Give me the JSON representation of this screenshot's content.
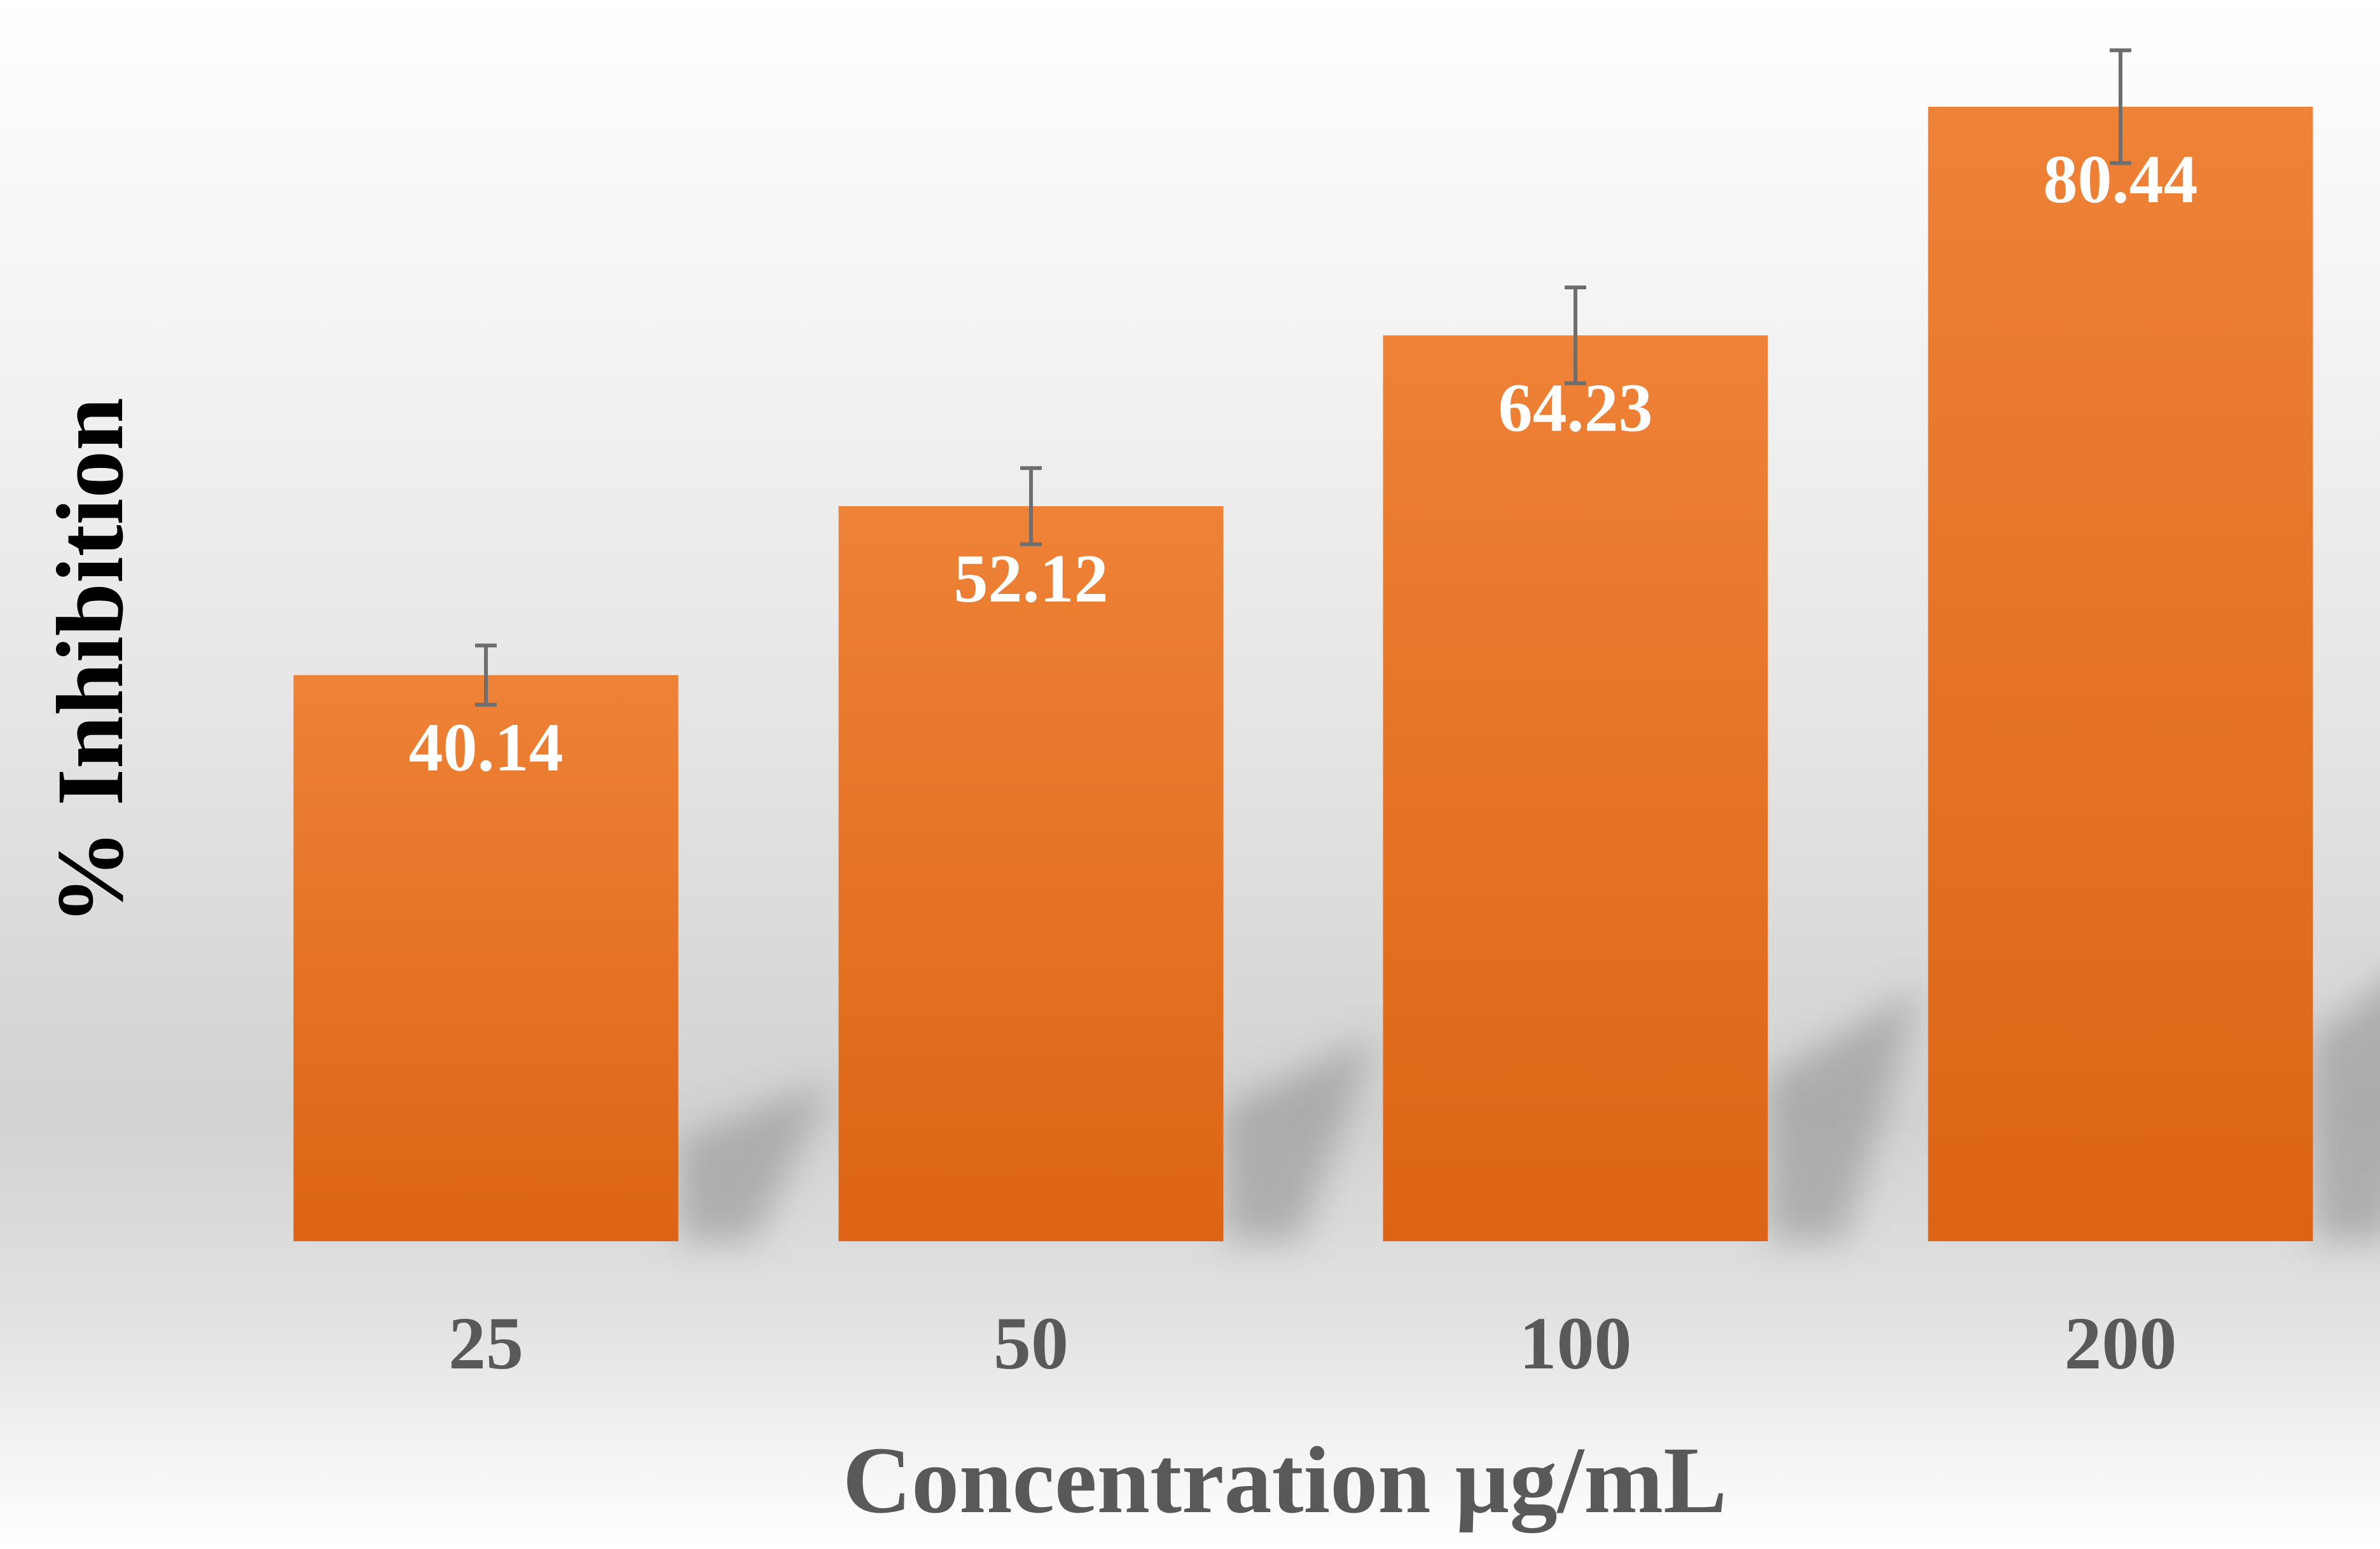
{
  "chart_data": {
    "type": "bar",
    "title": "",
    "xlabel": "Concentration µg/mL",
    "ylabel": "% Inhibition",
    "categories": [
      "25",
      "50",
      "100",
      "200"
    ],
    "values": [
      40.14,
      52.12,
      64.23,
      80.44
    ],
    "value_labels": [
      "40.14",
      "52.12",
      "64.23",
      "80.44"
    ],
    "error": [
      2.1,
      2.7,
      3.4,
      4.0
    ],
    "ylim": [
      0,
      85
    ],
    "grid": false,
    "legend": "none",
    "colors": {
      "bar_top": "#ee8237",
      "bar_bottom": "#dd6414",
      "error_bar": "#6e6e6e",
      "value_label": "#ffffff",
      "axis_text": "#595959",
      "ylabel_text": "#000000",
      "bg_light": "#ffffff",
      "bg_dark": "#d4d4d4"
    }
  }
}
